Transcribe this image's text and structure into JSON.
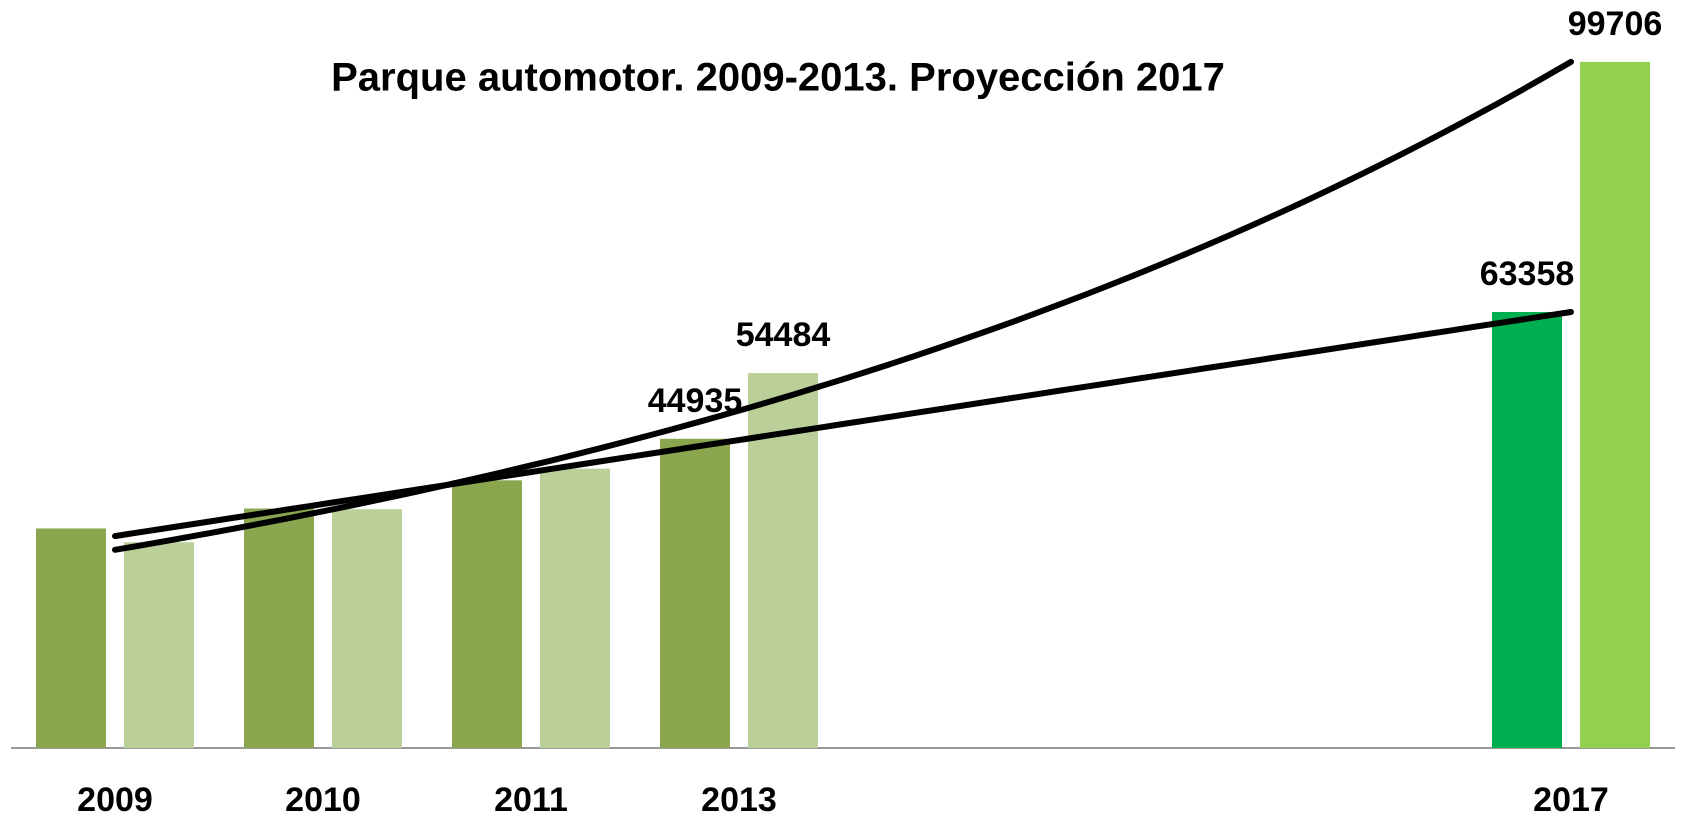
{
  "chart_data": {
    "type": "bar",
    "title": "Parque automotor. 2009-2013. Proyección 2017",
    "categories": [
      "2009",
      "2010",
      "2011",
      "2013",
      null,
      null,
      null,
      "2017"
    ],
    "series": [
      {
        "color": "#8aa64f",
        "colors": [
          "#8aa64f",
          "#8aa64f",
          "#8aa64f",
          "#8aa64f",
          null,
          null,
          null,
          "#00b050"
        ],
        "values": [
          31900,
          34800,
          38900,
          44935,
          null,
          null,
          null,
          63358
        ],
        "value_labels": [
          null,
          null,
          null,
          "44935",
          null,
          null,
          null,
          "63358"
        ]
      },
      {
        "color": "#bad098",
        "colors": [
          "#bad098",
          "#bad098",
          "#bad098",
          "#bad098",
          null,
          null,
          null,
          "#92d050"
        ],
        "values": [
          29900,
          34700,
          40600,
          54484,
          null,
          null,
          null,
          99706
        ],
        "value_labels": [
          null,
          null,
          null,
          "54484",
          null,
          null,
          null,
          "99706"
        ]
      }
    ],
    "trendlines": [
      {
        "kind": "linear",
        "color": "#000000",
        "start": 30800,
        "end": 63358
      },
      {
        "kind": "exponential",
        "color": "#000000",
        "start": 28800,
        "end": 99706
      }
    ],
    "ylim": [
      0,
      108700
    ]
  }
}
